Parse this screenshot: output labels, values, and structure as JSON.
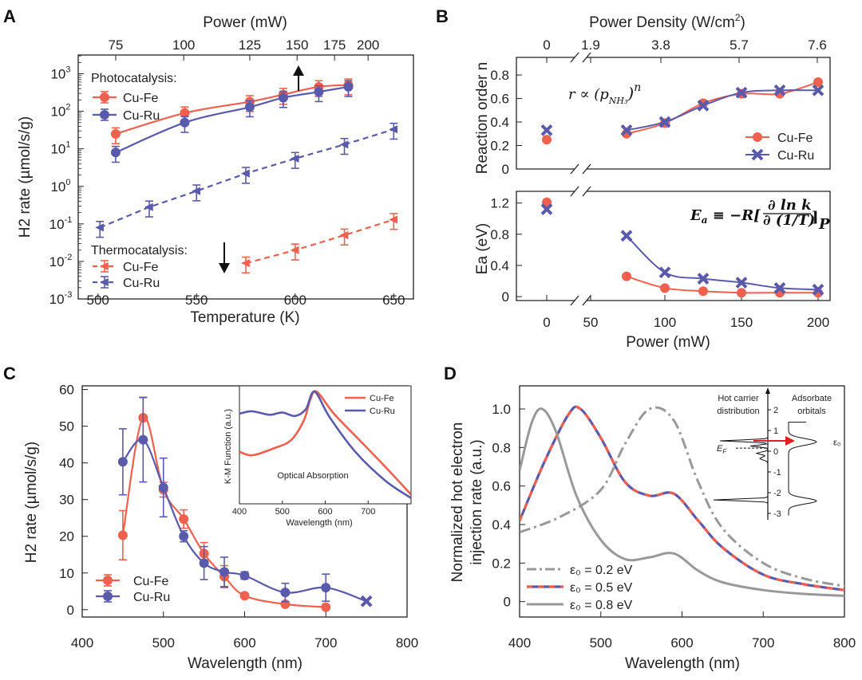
{
  "colors": {
    "fe": "#f0604f",
    "ru": "#5a5aad",
    "gray": "#999999",
    "axis": "#222222"
  },
  "panels": {
    "A": {
      "label": "A"
    },
    "B": {
      "label": "B"
    },
    "C": {
      "label": "C"
    },
    "D": {
      "label": "D"
    }
  },
  "chart_data": [
    {
      "panel": "A",
      "type": "line",
      "yscale": "log",
      "xlabel": "Temperature (K)",
      "x2label": "Power (mW)",
      "ylabel": "H2 rate (µmol/s/g)",
      "xlim": [
        490,
        660
      ],
      "ylim_exp": [
        -3,
        3.5
      ],
      "xticks": [
        500,
        550,
        600,
        650
      ],
      "x2ticks": [
        {
          "label": "75",
          "x": 509
        },
        {
          "label": "100",
          "x": 543.5
        },
        {
          "label": "125",
          "x": 577
        },
        {
          "label": "150",
          "x": 601
        },
        {
          "label": "175",
          "x": 620
        },
        {
          "label": "200",
          "x": 637
        }
      ],
      "yticks_exp": [
        -3,
        -2,
        -1,
        0,
        1,
        2,
        3
      ],
      "legend_photo_title": "Photocatalysis:",
      "legend_thermo_title": "Thermocatalysis:",
      "series": [
        {
          "name": "Cu-Fe",
          "group": "photo",
          "color": "fe",
          "marker": "circle",
          "dashed": false,
          "x": [
            509,
            544,
            577,
            594,
            612,
            627
          ],
          "y": [
            25,
            90,
            180,
            280,
            450,
            500
          ]
        },
        {
          "name": "Cu-Ru",
          "group": "photo",
          "color": "ru",
          "marker": "circle",
          "dashed": false,
          "x": [
            509,
            544,
            577,
            594,
            612,
            627
          ],
          "y": [
            8,
            50,
            130,
            230,
            330,
            450
          ]
        },
        {
          "name": "Cu-Fe",
          "group": "thermo",
          "color": "fe",
          "marker": "tri",
          "dashed": true,
          "x": [
            575,
            600,
            625,
            650
          ],
          "y": [
            0.009,
            0.02,
            0.05,
            0.13
          ]
        },
        {
          "name": "Cu-Ru",
          "group": "thermo",
          "color": "ru",
          "marker": "tri",
          "dashed": true,
          "x": [
            501,
            526,
            550,
            575,
            600,
            625,
            650
          ],
          "y": [
            0.08,
            0.28,
            0.75,
            2.2,
            5.5,
            13,
            33
          ]
        }
      ]
    },
    {
      "panel": "B",
      "type": "line",
      "x2label": "Power Density (W/cm2)",
      "x2ticks": [
        "0",
        "1.9",
        "3.8",
        "5.7",
        "7.6"
      ],
      "xlabel": "Power (mW)",
      "xticks": [
        "0",
        "50",
        "100",
        "150",
        "200"
      ],
      "top": {
        "ylabel": "Reaction order n",
        "yticks": [
          0,
          0.2,
          0.4,
          0.6,
          0.8
        ],
        "ylim": [
          0,
          0.95
        ],
        "formula": "r ∝ (p",
        "formula_sub": "NH₃",
        "formula_end": ")",
        "formula_sup": "n",
        "series": [
          {
            "name": "Cu-Fe",
            "color": "fe",
            "marker": "circle",
            "x": [
              0,
              75,
              100,
              125,
              150,
              175,
              200
            ],
            "y": [
              0.25,
              0.3,
              0.39,
              0.56,
              0.64,
              0.64,
              0.74
            ]
          },
          {
            "name": "Cu-Ru",
            "color": "ru",
            "marker": "x",
            "x": [
              0,
              75,
              100,
              125,
              150,
              175,
              200
            ],
            "y": [
              0.33,
              0.33,
              0.4,
              0.54,
              0.65,
              0.67,
              0.67
            ]
          }
        ]
      },
      "bottom": {
        "ylabel": "Ea (eV)",
        "yticks": [
          0,
          0.4,
          0.8,
          1.2
        ],
        "ylim": [
          -0.05,
          1.35
        ],
        "formula": "Eₐ ≡ −R[ ∂ln k / ∂(1/T) ]P",
        "series": [
          {
            "name": "Cu-Fe",
            "color": "fe",
            "marker": "circle",
            "x": [
              0,
              75,
              100,
              125,
              150,
              175,
              200
            ],
            "y": [
              1.21,
              0.26,
              0.11,
              0.07,
              0.05,
              0.05,
              0.05
            ]
          },
          {
            "name": "Cu-Ru",
            "color": "ru",
            "marker": "x",
            "x": [
              0,
              75,
              100,
              125,
              150,
              175,
              200
            ],
            "y": [
              1.12,
              0.78,
              0.31,
              0.23,
              0.18,
              0.11,
              0.09
            ]
          }
        ]
      }
    },
    {
      "panel": "C",
      "type": "line",
      "xlabel": "Wavelength (nm)",
      "ylabel": "H2 rate (µmol/s/g)",
      "xlim": [
        400,
        800
      ],
      "ylim": [
        -2,
        61
      ],
      "xticks": [
        400,
        500,
        600,
        700,
        800
      ],
      "yticks": [
        0,
        10,
        20,
        30,
        40,
        50,
        60
      ],
      "series": [
        {
          "name": "Cu-Fe",
          "color": "fe",
          "x": [
            450,
            475,
            500,
            525,
            550,
            575,
            600,
            650,
            700
          ],
          "y": [
            20.3,
            52.3,
            32.7,
            24.7,
            15.3,
            9.0,
            3.8,
            1.5,
            0.7
          ],
          "err": [
            6.7,
            5.6,
            2,
            2.5,
            3,
            3,
            0,
            0.2,
            0.2
          ]
        },
        {
          "name": "Cu-Ru",
          "color": "ru",
          "x": [
            450,
            475,
            500,
            525,
            550,
            575,
            600,
            650,
            700,
            750
          ],
          "y": [
            40.3,
            46.3,
            33.3,
            20.0,
            12.7,
            10.3,
            9.3,
            4.7,
            6.0,
            2.3
          ],
          "err": [
            9,
            11.5,
            8,
            1.5,
            4.5,
            4,
            1,
            2.5,
            3.7,
            0
          ]
        }
      ],
      "inset": {
        "title": "Optical Absorption",
        "xlabel": "Wavelength (nm)",
        "ylabel": "K-M Function (a.u.)",
        "xticks": [
          400,
          500,
          600,
          700
        ],
        "series": [
          {
            "name": "Cu-Fe",
            "color": "fe",
            "x": [
              400,
              430,
              480,
              520,
              550,
              565,
              580,
              620,
              680,
              740,
              800
            ],
            "y": [
              0.45,
              0.42,
              0.48,
              0.55,
              0.72,
              0.9,
              0.97,
              0.78,
              0.55,
              0.32,
              0.08
            ]
          },
          {
            "name": "Cu-Ru",
            "color": "ru",
            "x": [
              400,
              430,
              470,
              500,
              530,
              555,
              575,
              610,
              670,
              740,
              800
            ],
            "y": [
              0.78,
              0.8,
              0.77,
              0.79,
              0.76,
              0.82,
              0.97,
              0.75,
              0.45,
              0.2,
              0.05
            ]
          }
        ]
      }
    },
    {
      "panel": "D",
      "type": "line",
      "xlabel": "Wavelength (nm)",
      "ylabel": "Normalized hot electron injection rate (a.u.)",
      "ylabel_line1": "Normalized hot electron",
      "ylabel_line2": "injection rate (a.u.)",
      "xlim": [
        400,
        800
      ],
      "ylim": [
        -0.08,
        1.12
      ],
      "xticks": [
        400,
        500,
        600,
        700,
        800
      ],
      "yticks": [
        0,
        0.2,
        0.4,
        0.6,
        0.8,
        1.0
      ],
      "series": [
        {
          "name": "ε₀ = 0.2 eV",
          "style": "dashdot",
          "x": [
            400,
            450,
            500,
            530,
            560,
            590,
            620,
            650,
            700,
            750,
            800
          ],
          "y": [
            0.36,
            0.44,
            0.58,
            0.82,
            1.0,
            0.94,
            0.62,
            0.38,
            0.2,
            0.12,
            0.08
          ]
        },
        {
          "name": "ε₀ = 0.5 eV",
          "style": "bicolor",
          "x": [
            400,
            430,
            460,
            475,
            500,
            530,
            560,
            590,
            620,
            650,
            700,
            750,
            800
          ],
          "y": [
            0.42,
            0.72,
            0.97,
            1.0,
            0.85,
            0.62,
            0.55,
            0.56,
            0.42,
            0.28,
            0.14,
            0.09,
            0.06
          ]
        },
        {
          "name": "ε₀ = 0.8 eV",
          "style": "solid",
          "x": [
            400,
            415,
            428,
            445,
            470,
            500,
            530,
            560,
            590,
            620,
            650,
            700,
            750,
            800
          ],
          "y": [
            0.68,
            0.93,
            1.0,
            0.88,
            0.55,
            0.32,
            0.22,
            0.23,
            0.25,
            0.16,
            0.1,
            0.06,
            0.04,
            0.03
          ]
        }
      ],
      "inset": {
        "left_title_1": "Hot carrier",
        "left_title_2": "distribution",
        "right_title_1": "Adsorbate",
        "right_title_2": "orbitals",
        "ef_label": "EF",
        "e0_label": "ε₀",
        "yticks": [
          "2",
          "1",
          "0",
          "-1",
          "-2",
          "-3"
        ]
      }
    }
  ]
}
